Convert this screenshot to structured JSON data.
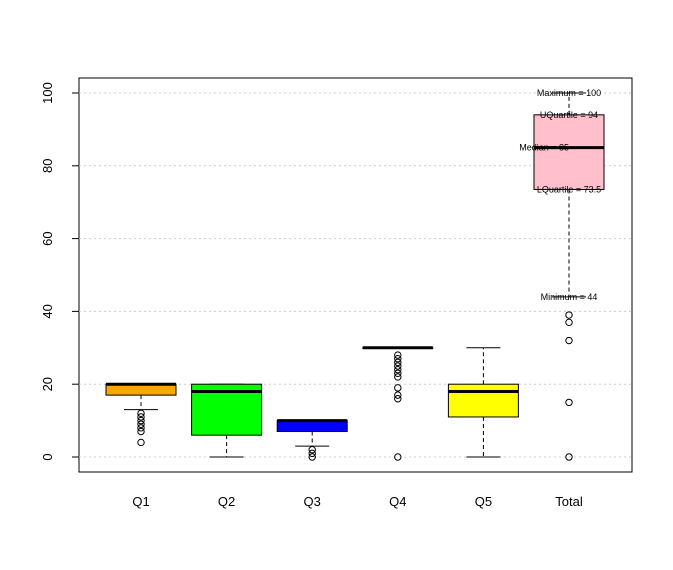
{
  "chart_data": {
    "type": "box",
    "categories": [
      "Q1",
      "Q2",
      "Q3",
      "Q4",
      "Q5",
      "Total"
    ],
    "ylim": [
      -3.5,
      104
    ],
    "yticks": [
      0,
      20,
      40,
      60,
      80,
      100
    ],
    "grid": "horizontal dotted",
    "boxes": [
      {
        "name": "Q1",
        "min": 13,
        "q1": 17,
        "median": 20,
        "q3": 20,
        "max": 20,
        "outliers": [
          12,
          11,
          10,
          9,
          8,
          7,
          4
        ],
        "color": "#FFA500"
      },
      {
        "name": "Q2",
        "min": 0,
        "q1": 6,
        "median": 18,
        "q3": 20,
        "max": 20,
        "outliers": [],
        "color": "#00FF00"
      },
      {
        "name": "Q3",
        "min": 3,
        "q1": 7,
        "median": 10,
        "q3": 10,
        "max": 10,
        "outliers": [
          2,
          1,
          0
        ],
        "color": "#0000FF"
      },
      {
        "name": "Q4",
        "min": 30,
        "q1": 30,
        "median": 30,
        "q3": 30,
        "max": 30,
        "outliers": [
          28,
          27,
          26,
          25,
          24,
          23,
          22,
          19,
          17,
          16,
          0
        ],
        "color": "#000000"
      },
      {
        "name": "Q5",
        "min": 0,
        "q1": 11,
        "median": 18,
        "q3": 20,
        "max": 30,
        "outliers": [],
        "color": "#FFFF00"
      },
      {
        "name": "Total",
        "min": 44,
        "q1": 73.5,
        "median": 85,
        "q3": 94,
        "max": 100,
        "outliers": [
          39,
          37,
          32,
          15,
          0
        ],
        "color": "#FFC0CB"
      }
    ],
    "annotations": {
      "max": "Maximum = 100",
      "uq": "UQuartile = 94",
      "median": "Median = 85",
      "lq": "LQuartile = 73.5",
      "min": "Minimum = 44"
    }
  }
}
